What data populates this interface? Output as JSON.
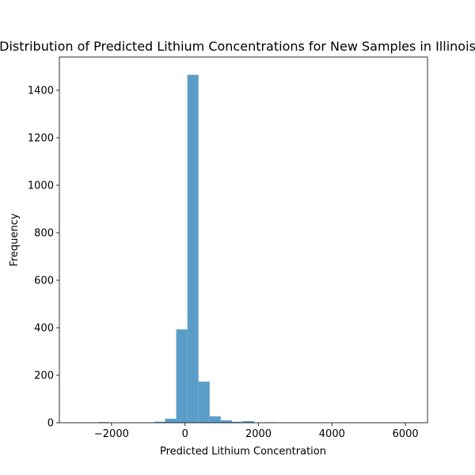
{
  "chart_data": {
    "type": "bar",
    "title": "Distribution of Predicted Lithium Concentrations for New Samples in Illinois",
    "xlabel": "Predicted Lithium Concentration",
    "ylabel": "Frequency",
    "xlim": [
      -3420,
      6600
    ],
    "ylim": [
      0,
      1540
    ],
    "xticks": [
      -2000,
      0,
      2000,
      4000,
      6000
    ],
    "xtick_labels": [
      "−2000",
      "0",
      "2000",
      "4000",
      "6000"
    ],
    "yticks": [
      0,
      200,
      400,
      600,
      800,
      1000,
      1200,
      1400
    ],
    "ytick_labels": [
      "0",
      "200",
      "400",
      "600",
      "800",
      "1000",
      "1200",
      "1400"
    ],
    "bar_color": "#5b9dc9",
    "bin_width": 303.3,
    "bins": [
      {
        "start": -2970,
        "count": 0
      },
      {
        "start": -2666.7,
        "count": 0
      },
      {
        "start": -2363.3,
        "count": 3
      },
      {
        "start": -2060,
        "count": 0
      },
      {
        "start": -1756.7,
        "count": 0
      },
      {
        "start": -1453.3,
        "count": 0
      },
      {
        "start": -1150,
        "count": 0
      },
      {
        "start": -846.7,
        "count": 4
      },
      {
        "start": -543.3,
        "count": 17
      },
      {
        "start": -240,
        "count": 393
      },
      {
        "start": 63.3,
        "count": 1465
      },
      {
        "start": 366.7,
        "count": 173
      },
      {
        "start": 670,
        "count": 27
      },
      {
        "start": 973.3,
        "count": 10
      },
      {
        "start": 1276.7,
        "count": 4
      },
      {
        "start": 1580,
        "count": 7
      },
      {
        "start": 1883.3,
        "count": 0
      },
      {
        "start": 2186.7,
        "count": 2
      },
      {
        "start": 2490,
        "count": 0
      },
      {
        "start": 2793.3,
        "count": 0
      },
      {
        "start": 3096.7,
        "count": 0
      },
      {
        "start": 3400,
        "count": 0
      },
      {
        "start": 3703.3,
        "count": 0
      },
      {
        "start": 4006.7,
        "count": 0
      },
      {
        "start": 4310,
        "count": 0
      },
      {
        "start": 4613.3,
        "count": 0
      },
      {
        "start": 4916.7,
        "count": 0
      },
      {
        "start": 5220,
        "count": 0
      },
      {
        "start": 5523.3,
        "count": 0
      },
      {
        "start": 5826.7,
        "count": 1
      }
    ]
  }
}
